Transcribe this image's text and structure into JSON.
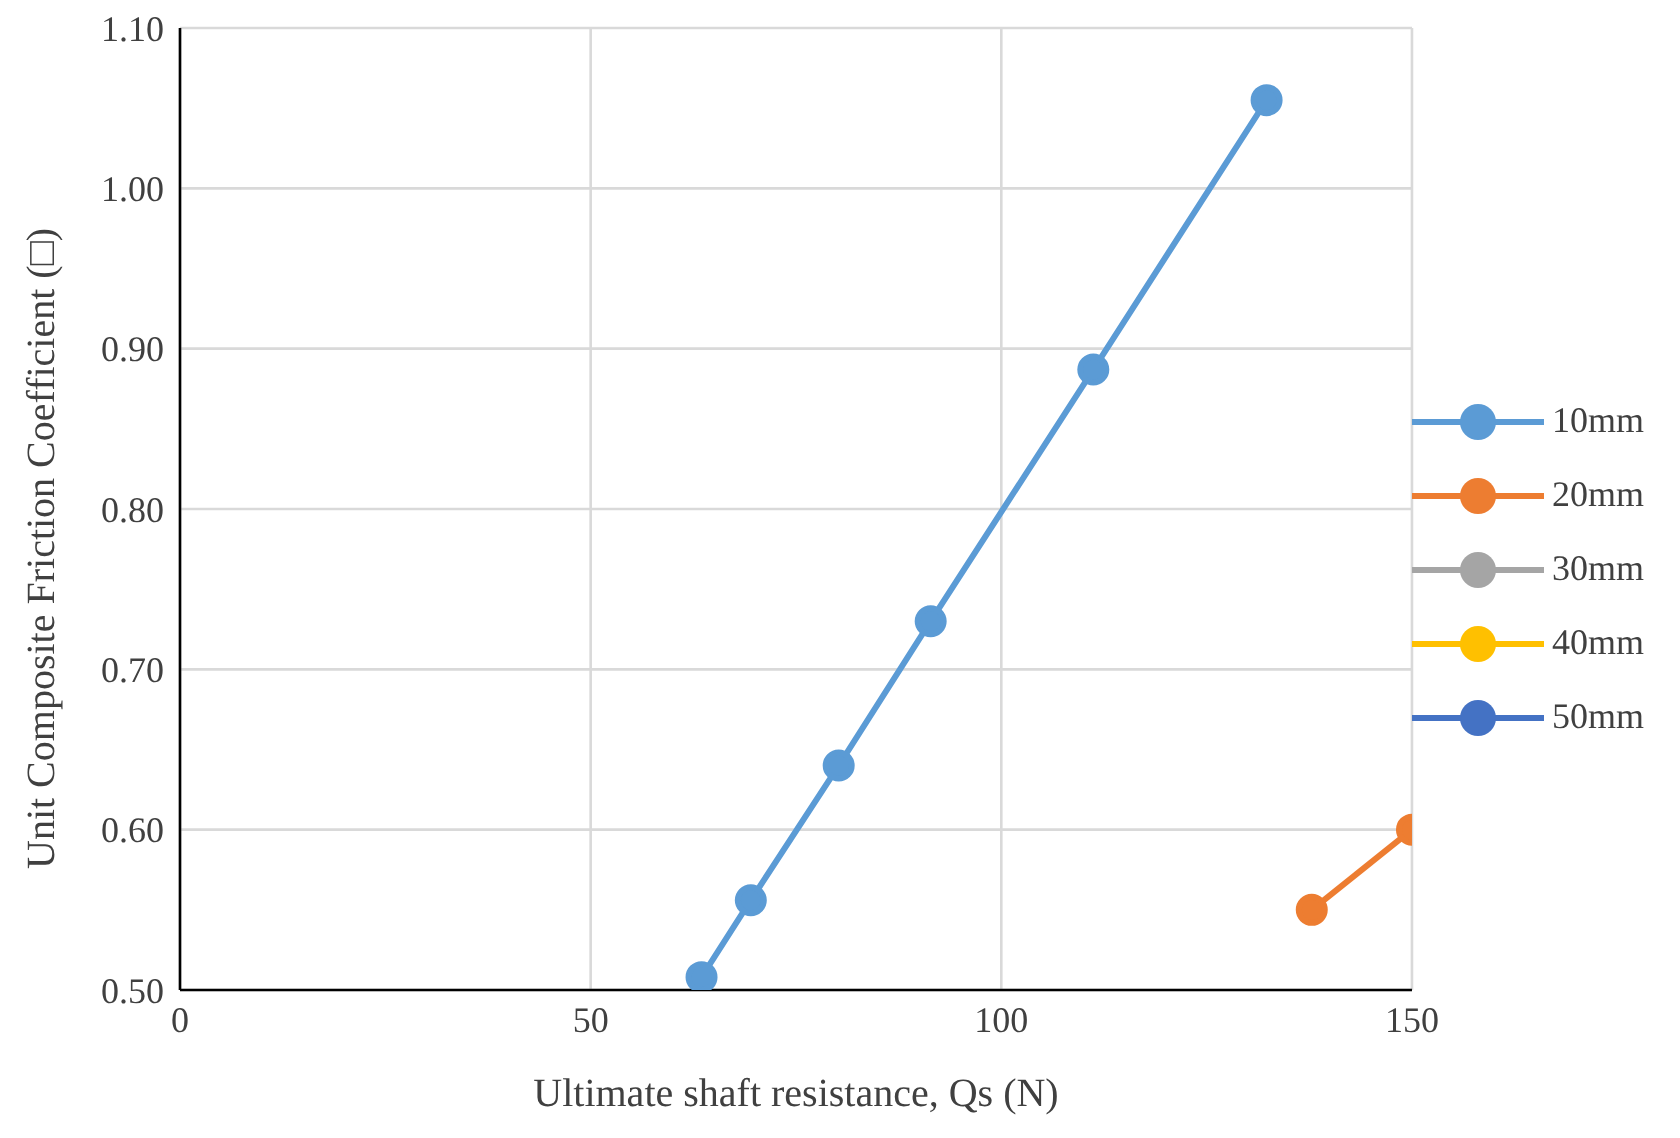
{
  "chart_data": {
    "type": "line",
    "xlabel": "Ultimate shaft resistance, Qs (N)",
    "ylabel": "Unit Composite Friction Coefficient (□)",
    "series": [
      {
        "name": "10mm",
        "color": "#5b9bd5",
        "x": [
          63.5,
          69.5,
          80.2,
          91.4,
          111.2,
          132.3
        ],
        "values": [
          0.508,
          0.556,
          0.64,
          0.73,
          0.887,
          1.055
        ]
      },
      {
        "name": "20mm",
        "color": "#ed7d31",
        "x": [
          137.8,
          150
        ],
        "values": [
          0.55,
          0.6
        ]
      },
      {
        "name": "30mm",
        "color": "#a5a5a5"
      },
      {
        "name": "40mm",
        "color": "#ffc000"
      },
      {
        "name": "50mm",
        "color": "#4472c4"
      }
    ],
    "xlim": [
      0,
      150
    ],
    "xticks": [
      0,
      50,
      100,
      150
    ],
    "ylim": [
      0.5,
      1.1
    ],
    "yticks": [
      {
        "value": 0.5,
        "label": "0.50"
      },
      {
        "value": 0.6,
        "label": "0.60"
      },
      {
        "value": 0.7,
        "label": "0.70"
      },
      {
        "value": 0.8,
        "label": "0.80"
      },
      {
        "value": 0.9,
        "label": "0.90"
      },
      {
        "value": 1.0,
        "label": "1.00"
      },
      {
        "value": 1.1,
        "label": "1.10"
      }
    ],
    "grid": true,
    "legend": "right",
    "marker": "circle",
    "line_style": "solid"
  }
}
